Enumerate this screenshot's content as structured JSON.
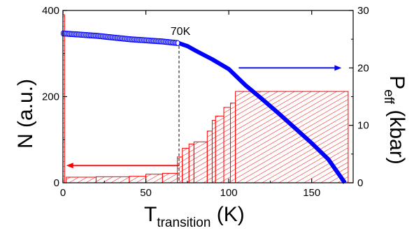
{
  "chart_data": {
    "type": "bar",
    "xlabel": "T",
    "xlabel_subscript": "transition",
    "xlabel_unit": " (K)",
    "ylabel": "N (a.u.)",
    "y2label": "P",
    "y2label_subscript": "eff",
    "y2label_unit": " (kbar)",
    "xlim": [
      0,
      175
    ],
    "ylim": [
      0,
      400
    ],
    "y2lim": [
      0,
      30
    ],
    "xticks": [
      0,
      50,
      100,
      150
    ],
    "yticks": [
      0,
      200,
      400
    ],
    "y2ticks": [
      0,
      10,
      20,
      30
    ],
    "xtick_labels": [
      "0",
      "50",
      "100",
      "150"
    ],
    "ytick_labels": [
      "0",
      "200",
      "400"
    ],
    "y2tick_labels": [
      "0",
      "10",
      "20",
      "30"
    ],
    "annotation": {
      "text": "70K",
      "x": 70
    },
    "colors": {
      "histogram": "#ff0000",
      "pressure": "#0000ff",
      "axes": "#000000"
    },
    "histogram": {
      "axis": "left",
      "bins": [
        {
          "x0": 0,
          "x1": 1,
          "value": 390
        },
        {
          "x0": 2,
          "x1": 20,
          "value": 13
        },
        {
          "x0": 20,
          "x1": 40,
          "value": 14
        },
        {
          "x0": 40,
          "x1": 50,
          "value": 15
        },
        {
          "x0": 50,
          "x1": 60,
          "value": 20
        },
        {
          "x0": 60,
          "x1": 69,
          "value": 22
        },
        {
          "x0": 69,
          "x1": 72,
          "value": 60
        },
        {
          "x0": 72,
          "x1": 76,
          "value": 80
        },
        {
          "x0": 76,
          "x1": 79,
          "value": 90
        },
        {
          "x0": 79,
          "x1": 87,
          "value": 95
        },
        {
          "x0": 87,
          "x1": 90,
          "value": 120
        },
        {
          "x0": 90,
          "x1": 92,
          "value": 145
        },
        {
          "x0": 92,
          "x1": 97,
          "value": 155
        },
        {
          "x0": 97,
          "x1": 101,
          "value": 175
        },
        {
          "x0": 101,
          "x1": 104,
          "value": 185
        },
        {
          "x0": 104,
          "x1": 172,
          "value": 212
        }
      ]
    },
    "pressure_curve": {
      "axis": "right",
      "x": [
        0,
        10,
        20,
        30,
        40,
        50,
        60,
        70,
        75,
        80,
        90,
        100,
        110,
        120,
        130,
        140,
        150,
        160,
        170
      ],
      "y": [
        26,
        25.8,
        25.6,
        25.3,
        25.0,
        24.8,
        24.6,
        24.3,
        23.8,
        23.0,
        21.5,
        19.8,
        17.0,
        14.6,
        12.1,
        9.5,
        6.9,
        4.1,
        0
      ]
    },
    "arrows": [
      {
        "direction": "left",
        "axis": "left",
        "x_from": 70,
        "x_to": 2,
        "y": 40
      },
      {
        "direction": "right",
        "axis": "right",
        "x_from": 106,
        "x_to": 168,
        "y": 20
      }
    ]
  }
}
